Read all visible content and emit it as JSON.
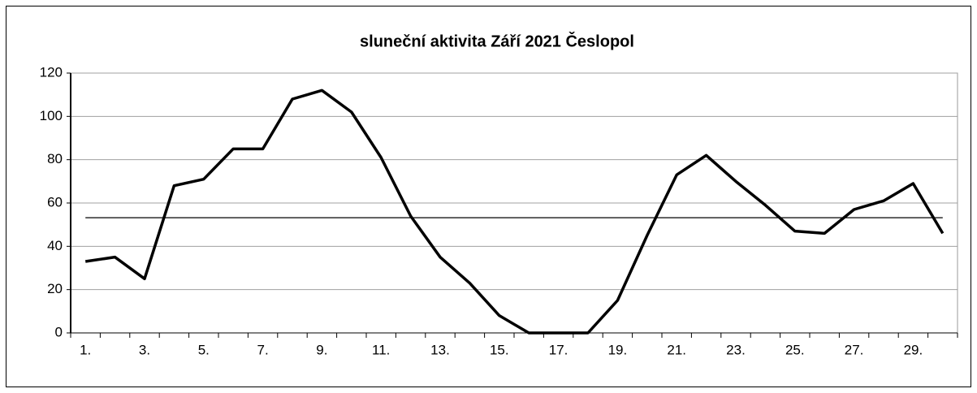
{
  "chart_data": {
    "type": "line",
    "title": "sluneční aktivita Září 2021 Česlopol",
    "categories": [
      "1.",
      null,
      "3.",
      null,
      "5.",
      null,
      "7.",
      null,
      "9.",
      null,
      "11.",
      null,
      "13.",
      null,
      "15.",
      null,
      "17.",
      null,
      "19.",
      null,
      "21.",
      null,
      "23.",
      null,
      "25.",
      null,
      "27.",
      null,
      "29.",
      null
    ],
    "values": [
      33,
      35,
      25,
      68,
      71,
      85,
      85,
      108,
      112,
      102,
      81,
      54,
      35,
      23,
      8,
      0,
      0,
      0,
      15,
      45,
      73,
      82,
      70,
      59,
      47,
      46,
      57,
      61,
      69,
      46
    ],
    "color": "#000000",
    "reference_line": 53.2,
    "ylim": [
      0,
      120
    ],
    "yticks": [
      0,
      20,
      40,
      60,
      80,
      100,
      120
    ],
    "grid": true
  }
}
